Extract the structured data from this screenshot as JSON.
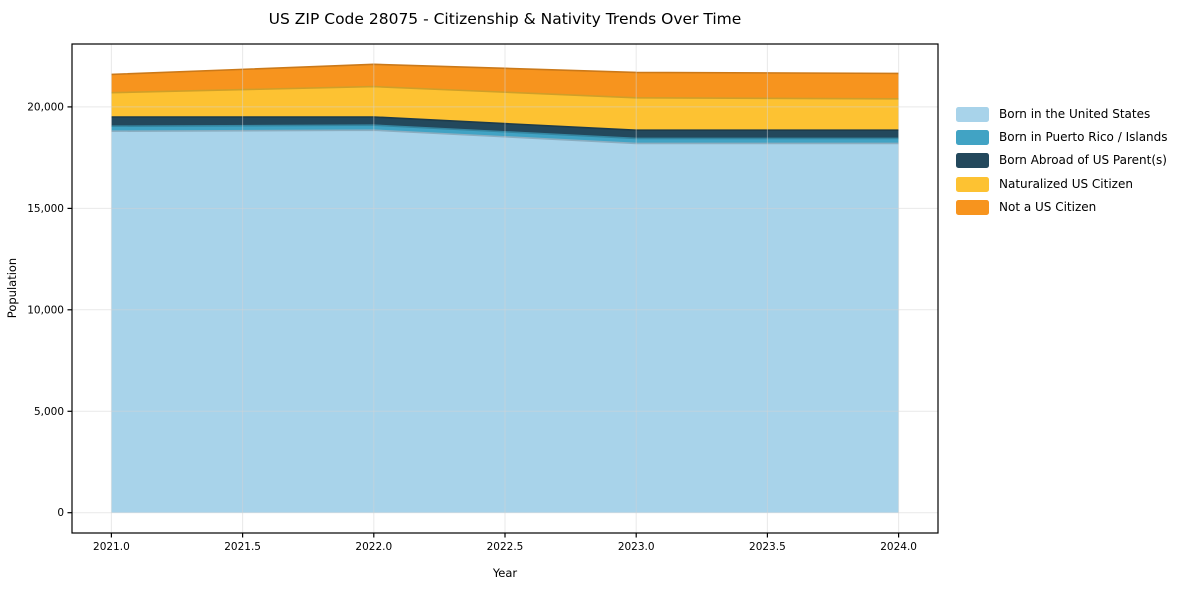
{
  "chart_data": {
    "type": "area",
    "stacked": true,
    "title": "US ZIP Code 28075 - Citizenship & Nativity Trends Over Time",
    "xlabel": "Year",
    "ylabel": "Population",
    "x": [
      2021,
      2022,
      2023,
      2024
    ],
    "series": [
      {
        "name": "Born in the United States",
        "color": "#A8D3EA",
        "values": [
          18800,
          18850,
          18200,
          18200
        ]
      },
      {
        "name": "Born in Puerto Rico / Islands",
        "color": "#41A3C4",
        "values": [
          250,
          250,
          250,
          250
        ]
      },
      {
        "name": "Born Abroad of US Parent(s)",
        "color": "#23485C",
        "values": [
          450,
          400,
          400,
          400
        ]
      },
      {
        "name": "Naturalized US Citizen",
        "color": "#FDC232",
        "values": [
          1200,
          1500,
          1600,
          1550
        ]
      },
      {
        "name": "Not a US Citizen",
        "color": "#F7941E",
        "values": [
          900,
          1100,
          1250,
          1250
        ]
      }
    ],
    "x_tick_values": [
      2021.0,
      2021.5,
      2022.0,
      2022.5,
      2023.0,
      2023.5,
      2024.0
    ],
    "x_tick_labels": [
      "2021.0",
      "2021.5",
      "2022.0",
      "2022.5",
      "2023.0",
      "2023.5",
      "2024.0"
    ],
    "y_tick_values": [
      0,
      5000,
      10000,
      15000,
      20000
    ],
    "y_tick_labels": [
      "0",
      "5,000",
      "10,000",
      "15,000",
      "20,000"
    ],
    "xlim": [
      2020.85,
      2024.15
    ],
    "ylim": [
      -1000,
      23100
    ],
    "grid": true,
    "gridline_color": "#d3d3d3",
    "axis_color": "#000000",
    "background_color": "#ffffff",
    "legend_position": "right"
  }
}
